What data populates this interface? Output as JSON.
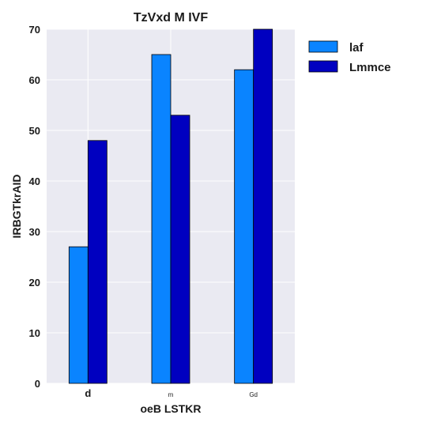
{
  "chart_data": {
    "type": "bar",
    "title": "TzVxd  M IVF",
    "xlabel": "oeB LSTKR",
    "ylabel": "IRBGTkrAID",
    "categories": [
      "d",
      "m",
      "Gd"
    ],
    "series": [
      {
        "name": "laf",
        "values": [
          27,
          65,
          62
        ],
        "color": "#0a84ff"
      },
      {
        "name": "Lmmce",
        "values": [
          48,
          53,
          70
        ],
        "color": "#0000c0"
      }
    ],
    "ylim": [
      0,
      70
    ],
    "yticks": [
      "0",
      "10",
      "20",
      "30",
      "40",
      "50",
      "60",
      "70"
    ],
    "grid": true,
    "legend_position": "top-right",
    "plot_background": "#eaeaf2"
  }
}
